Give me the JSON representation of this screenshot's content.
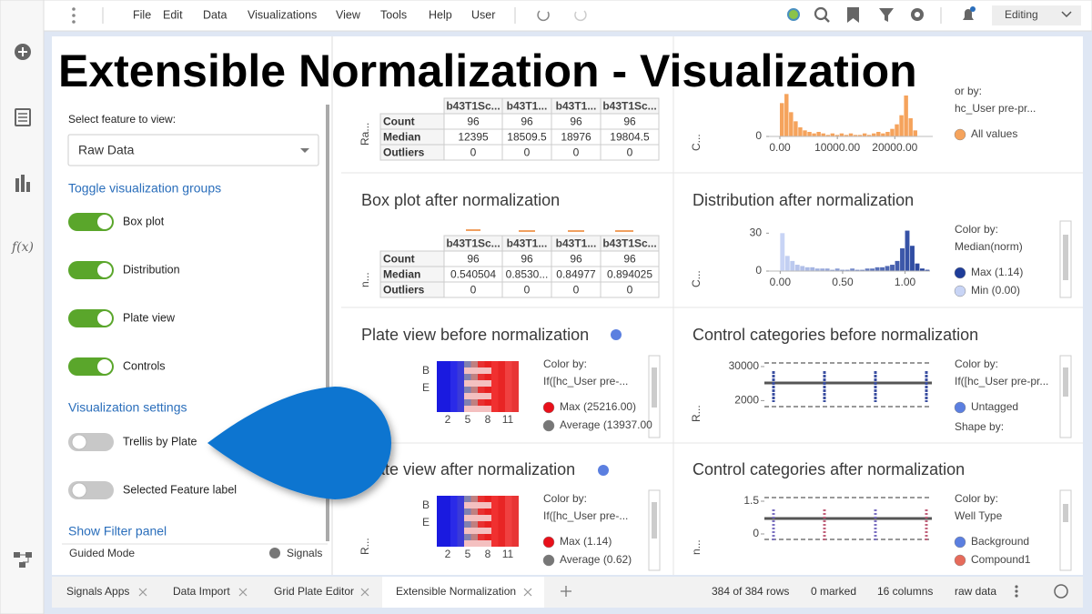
{
  "menu": [
    "File",
    "Edit",
    "Data",
    "Visualizations",
    "View",
    "Tools",
    "Help",
    "User"
  ],
  "mode": "Editing",
  "fx_icon": "f(x)",
  "title": "Extensible Normalization - Visualization",
  "sidebar": {
    "select_label": "Select feature to view:",
    "select_value": "Raw Data",
    "groups_heading": "Toggle visualization groups",
    "groups": [
      "Box plot",
      "Distribution",
      "Plate view",
      "Controls"
    ],
    "settings_heading": "Visualization settings",
    "settings": [
      "Trellis by Plate",
      "Selected Feature label"
    ],
    "filter_link": "Show Filter panel",
    "guided_mode": "Guided Mode",
    "signals": "Signals"
  },
  "panels": {
    "box_before": {
      "axis_label": "Ra...",
      "table": {
        "columns": [
          "b43T1Sc...",
          "b43T1...",
          "b43T1...",
          "b43T1Sc..."
        ],
        "rows": [
          [
            "Count",
            "96",
            "96",
            "96",
            "96"
          ],
          [
            "Median",
            "12395",
            "18509.5",
            "18976",
            "19804.5"
          ],
          [
            "Outliers",
            "0",
            "0",
            "0",
            "0"
          ]
        ]
      }
    },
    "box_after": {
      "title": "Box plot after normalization",
      "axis_label": "n...",
      "table": {
        "columns": [
          "b43T1Sc...",
          "b43T1...",
          "b43T1...",
          "b43T1Sc..."
        ],
        "rows": [
          [
            "Count",
            "96",
            "96",
            "96",
            "96"
          ],
          [
            "Median",
            "0.540504",
            "0.8530...",
            "0.84977",
            "0.894025"
          ],
          [
            "Outliers",
            "0",
            "0",
            "0",
            "0"
          ]
        ]
      }
    },
    "dist_before": {
      "axis_label": "C...",
      "chart": {
        "type": "histogram",
        "bins": [
          0,
          800,
          1600,
          2400,
          3200,
          4000,
          4800,
          5600,
          6400,
          7200,
          8000,
          8800,
          9600,
          10400,
          11200,
          12000,
          12800,
          13600,
          14400,
          15200,
          16000,
          16800,
          17600,
          18400,
          19200,
          20000,
          20800,
          21600,
          22400,
          23200,
          24000
        ],
        "counts": [
          22,
          28,
          16,
          10,
          6,
          4,
          3,
          2,
          3,
          2,
          1,
          2,
          1,
          2,
          1,
          2,
          1,
          1,
          2,
          1,
          2,
          3,
          2,
          3,
          5,
          8,
          14,
          27,
          12,
          4
        ],
        "color": "#f5a35c",
        "xlim": [
          -1900,
          26600
        ],
        "xticks": [
          {
            "value": 0,
            "label": "0.00"
          },
          {
            "value": 10000,
            "label": "10000.00"
          },
          {
            "value": 20000,
            "label": "20000.00"
          }
        ],
        "ylim": [
          0,
          30
        ],
        "yticks": [
          0
        ]
      },
      "legend": {
        "heading": "or by:",
        "field": "hc_User pre-pr...",
        "items": [
          {
            "name": "All values",
            "color": "#f5a35c"
          }
        ]
      }
    },
    "dist_after": {
      "title": "Distribution after normalization",
      "axis_label": "C...",
      "chart": {
        "type": "histogram",
        "bins": [
          0,
          0.04,
          0.08,
          0.12,
          0.16,
          0.2,
          0.24,
          0.28,
          0.32,
          0.36,
          0.4,
          0.44,
          0.48,
          0.52,
          0.56,
          0.6,
          0.64,
          0.68,
          0.72,
          0.76,
          0.8,
          0.84,
          0.88,
          0.92,
          0.96,
          1,
          1.04,
          1.08,
          1.12,
          1.16,
          1.2
        ],
        "counts": [
          30,
          12,
          8,
          5,
          4,
          3,
          3,
          2,
          2,
          2,
          1,
          2,
          1,
          1,
          2,
          1,
          1,
          2,
          2,
          3,
          3,
          4,
          5,
          8,
          18,
          32,
          20,
          6,
          2,
          1
        ],
        "color_range": [
          "#c8d4f5",
          "#1f3d99"
        ],
        "xlim": [
          -0.09,
          1.2
        ],
        "xticks": [
          {
            "value": 0,
            "label": "0.00"
          },
          {
            "value": 0.5,
            "label": "0.50"
          },
          {
            "value": 1,
            "label": "1.00"
          }
        ],
        "ylim": [
          0,
          36
        ],
        "yticks": [
          0,
          30
        ]
      },
      "legend": {
        "heading": "Color by:",
        "field": "Median(norm)",
        "items": [
          {
            "name": "Max (1.14)",
            "color": "#1f3d99"
          },
          {
            "name": "Min (0.00)",
            "color": "#c8d4f5"
          }
        ]
      }
    },
    "plate_before": {
      "title": "Plate view before normalization",
      "rows": [
        "B",
        "E"
      ],
      "cols": [
        "2",
        "5",
        "8",
        "11"
      ],
      "legend": {
        "heading": "Color by:",
        "field": "If([hc_User pre-...",
        "items": [
          {
            "name": "Max (25216.00)",
            "color": "#e8101a"
          },
          {
            "name": "Average (13937.00",
            "color": "#777777"
          }
        ]
      }
    },
    "plate_after": {
      "title": "Plate view after normalization",
      "axis_label": "R...",
      "rows": [
        "B",
        "E"
      ],
      "cols": [
        "2",
        "5",
        "8",
        "11"
      ],
      "legend": {
        "heading": "Color by:",
        "field": "If([hc_User pre-...",
        "items": [
          {
            "name": "Max (1.14)",
            "color": "#e8101a"
          },
          {
            "name": "Average (0.62)",
            "color": "#777777"
          }
        ]
      }
    },
    "control_before": {
      "title": "Control categories before normalization",
      "axis_label": "R...",
      "log": true,
      "ylim": [
        1000,
        40000
      ],
      "yticks": [
        30000,
        2000
      ],
      "legend": {
        "heading": "Color by:",
        "field": "If([hc_User pre-pr...",
        "items": [
          {
            "name": "Untagged",
            "color": "#5b7fe0"
          }
        ],
        "extra": "Shape by:"
      }
    },
    "control_after": {
      "title": "Control categories after normalization",
      "axis_label": "n...",
      "log": false,
      "ylim": [
        -0.2,
        1.6
      ],
      "yticks": [
        1.5,
        0
      ],
      "legend": {
        "heading": "Color by:",
        "field": "Well Type",
        "items": [
          {
            "name": "Background",
            "color": "#5b7fe0"
          },
          {
            "name": "Compound1",
            "color": "#e66b5b"
          }
        ]
      }
    }
  },
  "tabs": [
    "Signals Apps",
    "Data Import",
    "Grid Plate Editor",
    "Extensible Normalization"
  ],
  "status": [
    "384 of 384 rows",
    "0 marked",
    "16 columns",
    "raw data"
  ]
}
